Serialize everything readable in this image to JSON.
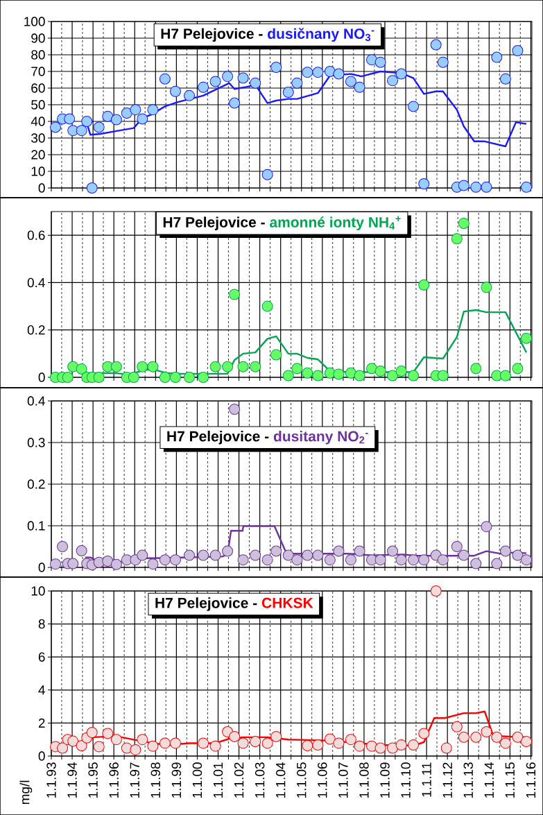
{
  "chart_data": [
    {
      "type": "scatter",
      "title": "H7 Pelejovice -",
      "subtitle": "dusičnany NO$_{3}$$^{-}$",
      "xlim": [
        "1993-01-01",
        "2016-01-20"
      ],
      "ylim": [
        0,
        100
      ],
      "yticks": [
        0,
        10,
        20,
        30,
        40,
        50,
        60,
        70,
        80,
        90,
        100
      ],
      "grid": true,
      "tick_labels": "y",
      "marker": "circle",
      "series": [
        {
          "color": "#99ccff",
          "x": [
            "1993-03-15",
            "1993-07-15",
            "1993-11-15",
            "1994-01-15",
            "1994-06-15",
            "1994-09-15",
            "1994-12-15",
            "1995-04-15",
            "1995-09-15",
            "1996-02-15",
            "1996-08-15",
            "1997-01-15",
            "1997-05-15",
            "1997-11-15",
            "1998-06-15",
            "1998-12-15",
            "1999-08-15",
            "2000-04-15",
            "2000-11-15",
            "2001-06-15",
            "2001-10-15",
            "2002-03-15",
            "2002-10-15",
            "2003-05-15",
            "2003-10-15",
            "2004-05-15",
            "2004-10-15",
            "2005-04-15",
            "2005-10-15",
            "2006-05-15",
            "2006-10-15",
            "2007-05-15",
            "2007-10-15",
            "2008-05-15",
            "2008-10-15",
            "2009-05-15",
            "2009-10-15",
            "2010-05-15",
            "2010-11-15",
            "2011-06-15",
            "2011-10-15",
            "2012-06-15",
            "2012-10-15",
            "2013-05-15",
            "2013-11-15",
            "2014-05-15",
            "2014-10-15",
            "2015-05-15",
            "2015-10-15"
          ],
          "values": [
            36.5,
            41.5,
            41.5,
            34.5,
            34.5,
            40,
            0,
            36.5,
            43,
            41,
            45,
            47,
            41.5,
            47,
            65.5,
            58,
            55.5,
            60.5,
            64,
            67,
            51,
            66,
            63,
            8,
            72.5,
            57.5,
            63,
            69.5,
            69.5,
            70,
            68.5,
            64,
            60.5,
            77,
            75.5,
            64.5,
            68.5,
            49,
            2.5,
            86,
            75.5,
            0.5,
            1.5,
            0.5,
            0.5,
            78.5,
            65.5,
            82.5,
            0.5
          ]
        },
        {
          "type": "line",
          "marker": "none",
          "line_style": "solid",
          "color": "#1a1aff",
          "x": [
            "1994-09-15",
            "1994-11-15",
            "1995-05-15",
            "1996-01-15",
            "1996-12-15",
            "1997-05-15",
            "1997-10-15",
            "1998-06-15",
            "1999-01-15",
            "2000-04-15",
            "2000-11-15",
            "2001-07-15",
            "2001-10-15",
            "2002-04-15",
            "2002-10-15",
            "2003-05-15",
            "2003-10-15",
            "2004-05-15",
            "2004-10-15",
            "2005-10-15",
            "2006-05-15",
            "2007-05-15",
            "2007-11-15",
            "2008-10-15",
            "2009-10-15",
            "2010-05-15",
            "2010-11-15",
            "2011-06-15",
            "2011-10-15",
            "2012-06-15",
            "2012-10-15",
            "2013-04-15",
            "2013-10-15",
            "2014-10-15",
            "2015-04-15",
            "2015-10-15"
          ],
          "values": [
            39,
            32,
            32.5,
            34,
            36,
            42,
            44,
            49,
            51.5,
            55.5,
            59,
            63,
            59.5,
            60.5,
            62,
            51,
            52.5,
            53.5,
            53.5,
            57,
            67.5,
            68.5,
            67,
            70,
            69,
            66,
            56.5,
            58,
            58,
            47,
            37,
            28,
            28,
            25,
            39.5,
            38.5
          ]
        }
      ]
    },
    {
      "type": "scatter",
      "title": "H7 Pelejovice -",
      "subtitle": "amonné ionty NH$_{4}$$^{+}$",
      "xlim": [
        "1993-01-01",
        "2016-01-20"
      ],
      "ylim": [
        0,
        0.7
      ],
      "yticks": [
        0,
        0.2,
        0.4,
        0.6
      ],
      "grid": true,
      "tick_labels": "y",
      "marker": "circle",
      "series": [
        {
          "color": "#66ff66",
          "x": [
            "1993-03-15",
            "1993-07-15",
            "1993-10-15",
            "1994-01-15",
            "1994-06-15",
            "1994-09-15",
            "1994-12-15",
            "1995-04-15",
            "1995-09-15",
            "1996-02-15",
            "1996-08-15",
            "1996-12-15",
            "1997-05-15",
            "1997-11-15",
            "1998-06-15",
            "1998-12-15",
            "1999-08-15",
            "2000-04-15",
            "2000-11-15",
            "2001-06-15",
            "2001-10-15",
            "2002-03-15",
            "2002-10-15",
            "2003-05-15",
            "2003-10-15",
            "2004-05-15",
            "2004-10-15",
            "2005-04-15",
            "2005-10-15",
            "2006-05-15",
            "2006-10-15",
            "2007-05-15",
            "2007-10-15",
            "2008-05-15",
            "2008-10-15",
            "2009-05-15",
            "2009-10-15",
            "2010-05-15",
            "2010-11-15",
            "2011-06-15",
            "2011-10-15",
            "2012-06-15",
            "2012-10-15",
            "2013-05-15",
            "2013-11-15",
            "2014-05-15",
            "2014-10-15",
            "2015-05-15",
            "2015-10-15"
          ],
          "values": [
            0,
            0,
            0,
            0.045,
            0.035,
            0,
            0,
            0,
            0.045,
            0.045,
            0,
            0,
            0.045,
            0.045,
            0,
            0,
            0,
            0,
            0.045,
            0.045,
            0.35,
            0.045,
            0.045,
            0.3,
            0.095,
            0.007,
            0.037,
            0.018,
            0.007,
            0.018,
            0.013,
            0.018,
            0.007,
            0.037,
            0.026,
            0.007,
            0.026,
            0.007,
            0.39,
            0.007,
            0.007,
            0.585,
            0.65,
            0.037,
            0.38,
            0.007,
            0.007,
            0.037,
            0.165
          ]
        },
        {
          "type": "line",
          "marker": "none",
          "line_style": "solid",
          "color": "#00a651",
          "x": [
            "1994-09-15",
            "1996-01-15",
            "1996-09-15",
            "1997-07-15",
            "1997-12-15",
            "1998-07-15",
            "1999-03-15",
            "2001-06-15",
            "2001-10-15",
            "2002-03-15",
            "2002-10-15",
            "2003-05-15",
            "2003-10-15",
            "2004-05-15",
            "2004-10-15",
            "2005-04-15",
            "2005-10-15",
            "2006-05-15",
            "2007-05-15",
            "2010-05-15",
            "2010-11-15",
            "2011-10-15",
            "2012-06-15",
            "2012-10-15",
            "2013-05-15",
            "2013-11-15",
            "2014-10-15",
            "2015-10-15"
          ],
          "values": [
            0.018,
            0.018,
            0.012,
            0.032,
            0.032,
            0.018,
            0.015,
            0.015,
            0.073,
            0.1,
            0.105,
            0.163,
            0.173,
            0.1,
            0.1,
            0.082,
            0.076,
            0.026,
            0.022,
            0.022,
            0.085,
            0.079,
            0.17,
            0.278,
            0.284,
            0.275,
            0.275,
            0.105
          ]
        }
      ]
    },
    {
      "type": "scatter",
      "title": "H7 Pelejovice -",
      "subtitle": "dusitany NO$_{2}$$^{-}$",
      "xlim": [
        "1993-01-01",
        "2016-01-20"
      ],
      "ylim": [
        0,
        0.4
      ],
      "yticks": [
        0,
        0.1,
        0.2,
        0.3,
        0.4
      ],
      "grid": true,
      "tick_labels": "y",
      "marker": "circle",
      "series": [
        {
          "color": "#ccc0da",
          "x": [
            "1993-03-15",
            "1993-07-15",
            "1993-10-15",
            "1994-01-15",
            "1994-06-15",
            "1994-09-15",
            "1994-12-15",
            "1995-04-15",
            "1995-09-15",
            "1996-02-15",
            "1996-08-15",
            "1997-01-15",
            "1997-05-15",
            "1997-11-15",
            "1998-06-15",
            "1998-12-15",
            "1999-08-15",
            "2000-04-15",
            "2000-11-15",
            "2001-06-15",
            "2001-10-15",
            "2002-03-15",
            "2002-10-15",
            "2003-05-15",
            "2003-10-15",
            "2004-05-15",
            "2004-10-15",
            "2005-04-15",
            "2005-10-15",
            "2006-05-15",
            "2006-10-15",
            "2007-05-15",
            "2007-10-15",
            "2008-05-15",
            "2008-10-15",
            "2009-05-15",
            "2009-10-15",
            "2010-05-15",
            "2010-11-15",
            "2011-06-15",
            "2011-10-15",
            "2012-06-15",
            "2012-10-15",
            "2013-05-15",
            "2013-11-15",
            "2014-05-15",
            "2014-10-15",
            "2015-05-15",
            "2015-10-15"
          ],
          "values": [
            0.008,
            0.05,
            0.009,
            0.009,
            0.04,
            0.009,
            0.006,
            0.012,
            0.015,
            0.007,
            0.018,
            0.018,
            0.029,
            0.008,
            0.018,
            0.018,
            0.029,
            0.029,
            0.029,
            0.039,
            0.38,
            0.018,
            0.029,
            0.018,
            0.039,
            0.029,
            0.018,
            0.029,
            0.029,
            0.018,
            0.039,
            0.018,
            0.039,
            0.018,
            0.018,
            0.039,
            0.018,
            0.018,
            0.018,
            0.029,
            0.018,
            0.05,
            0.029,
            0.009,
            0.098,
            0.009,
            0.039,
            0.029,
            0.018
          ]
        },
        {
          "type": "line",
          "marker": "none",
          "line_style": "solid",
          "color": "#7030a0",
          "x": [
            "1994-08-15",
            "1994-11-15",
            "1995-03-15",
            "1996-01-15",
            "1996-07-15",
            "1997-03-15",
            "1997-11-15",
            "2001-03-15",
            "2001-06-15",
            "2001-08-15",
            "2002-03-05",
            "2002-03-20",
            "2003-09-15",
            "2004-04-15",
            "2007-03-15",
            "2008-05-15",
            "2009-11-15",
            "2010-07-15",
            "2013-04-15",
            "2013-11-15",
            "2014-07-15",
            "2015-04-15",
            "2015-10-15"
          ],
          "values": [
            0.024,
            0.024,
            0.016,
            0.016,
            0.012,
            0.022,
            0.022,
            0.026,
            0.031,
            0.088,
            0.088,
            0.099,
            0.099,
            0.033,
            0.033,
            0.029,
            0.031,
            0.028,
            0.028,
            0.039,
            0.033,
            0.036,
            0.034
          ]
        }
      ]
    },
    {
      "type": "scatter",
      "title": "H7 Pelejovice -",
      "subtitle": "CHKSK",
      "ylabel": "mg/l",
      "xlim": [
        "1993-01-01",
        "2016-01-20"
      ],
      "ylim": [
        0,
        10
      ],
      "yticks": [
        0,
        2,
        4,
        6,
        8,
        10
      ],
      "grid": true,
      "marker": "circle",
      "xticks": [
        {
          "value": "1993-01-01",
          "label": "1.1.93"
        },
        {
          "value": "1993-07-01",
          "label": null
        },
        {
          "value": "1994-01-01",
          "label": "1.1.94"
        },
        {
          "value": "1994-07-01",
          "label": null
        },
        {
          "value": "1995-01-01",
          "label": "1.1.95"
        },
        {
          "value": "1995-07-01",
          "label": null
        },
        {
          "value": "1996-01-01",
          "label": "1.1.96"
        },
        {
          "value": "1996-07-01",
          "label": null
        },
        {
          "value": "1997-01-01",
          "label": "1.1.97"
        },
        {
          "value": "1997-07-01",
          "label": null
        },
        {
          "value": "1998-01-01",
          "label": "1.1.98"
        },
        {
          "value": "1998-07-01",
          "label": null
        },
        {
          "value": "1999-01-01",
          "label": "1.1.99"
        },
        {
          "value": "1999-07-01",
          "label": null
        },
        {
          "value": "2000-01-01",
          "label": "1.1.00"
        },
        {
          "value": "2000-07-01",
          "label": null
        },
        {
          "value": "2001-01-01",
          "label": "1.1.01"
        },
        {
          "value": "2001-07-01",
          "label": null
        },
        {
          "value": "2002-01-01",
          "label": "1.1.02"
        },
        {
          "value": "2002-07-01",
          "label": null
        },
        {
          "value": "2003-01-01",
          "label": "1.1.03"
        },
        {
          "value": "2003-07-01",
          "label": null
        },
        {
          "value": "2004-01-01",
          "label": "1.1.04"
        },
        {
          "value": "2004-07-01",
          "label": null
        },
        {
          "value": "2005-01-01",
          "label": "1.1.05"
        },
        {
          "value": "2005-07-01",
          "label": null
        },
        {
          "value": "2006-01-01",
          "label": "1.1.06"
        },
        {
          "value": "2006-07-01",
          "label": null
        },
        {
          "value": "2007-01-01",
          "label": "1.1.07"
        },
        {
          "value": "2007-07-01",
          "label": null
        },
        {
          "value": "2008-01-01",
          "label": "1.1.08"
        },
        {
          "value": "2008-07-01",
          "label": null
        },
        {
          "value": "2009-01-01",
          "label": "1.1.09"
        },
        {
          "value": "2009-07-01",
          "label": null
        },
        {
          "value": "2010-01-01",
          "label": "1.1.10"
        },
        {
          "value": "2010-07-01",
          "label": null
        },
        {
          "value": "2011-01-01",
          "label": "1.1.11"
        },
        {
          "value": "2011-07-01",
          "label": null
        },
        {
          "value": "2012-01-01",
          "label": "1.1.12"
        },
        {
          "value": "2012-07-01",
          "label": null
        },
        {
          "value": "2013-01-01",
          "label": "1.1.13"
        },
        {
          "value": "2013-07-01",
          "label": null
        },
        {
          "value": "2014-01-01",
          "label": "1.1.14"
        },
        {
          "value": "2014-07-01",
          "label": null
        },
        {
          "value": "2015-01-01",
          "label": "1.1.15"
        },
        {
          "value": "2015-07-01",
          "label": null
        },
        {
          "value": "2016-01-01",
          "label": "1.1.16"
        }
      ],
      "series": [
        {
          "color": "#f2dcdb",
          "x": [
            "1993-03-15",
            "1993-07-15",
            "1993-10-15",
            "1994-01-15",
            "1994-06-15",
            "1994-09-15",
            "1994-12-15",
            "1995-04-15",
            "1995-09-15",
            "1996-02-15",
            "1996-08-15",
            "1997-01-15",
            "1997-05-15",
            "1997-11-15",
            "1998-06-15",
            "1998-12-15",
            "2000-04-15",
            "2000-11-15",
            "2001-06-15",
            "2001-10-15",
            "2002-03-15",
            "2002-10-15",
            "2003-05-15",
            "2003-10-15",
            "2005-04-15",
            "2005-10-15",
            "2006-05-15",
            "2006-10-15",
            "2007-05-15",
            "2007-10-15",
            "2008-05-15",
            "2008-10-15",
            "2009-05-15",
            "2009-10-15",
            "2010-05-15",
            "2010-11-15",
            "2011-06-15",
            "2011-12-15",
            "2012-06-15",
            "2012-10-15",
            "2013-05-15",
            "2013-11-15",
            "2014-05-15",
            "2014-10-15",
            "2015-05-15",
            "2015-10-15"
          ],
          "values": [
            0.57,
            0.48,
            1.0,
            0.9,
            0.63,
            1.1,
            1.43,
            0.57,
            1.37,
            1.0,
            0.48,
            0.38,
            1.0,
            0.6,
            0.78,
            0.78,
            0.78,
            0.6,
            1.47,
            1.18,
            0.78,
            0.88,
            0.78,
            1.18,
            0.63,
            0.67,
            1.03,
            0.78,
            1.0,
            0.6,
            0.6,
            0.48,
            0.48,
            0.67,
            0.67,
            1.37,
            10,
            0.48,
            1.77,
            1.14,
            1.14,
            1.47,
            1.14,
            0.78,
            1.14,
            0.88
          ]
        },
        {
          "type": "line",
          "marker": "none",
          "line_style": "solid",
          "color": "#ff0000",
          "x": [
            "1994-08-15",
            "1995-01-15",
            "1995-09-15",
            "1996-05-15",
            "1997-01-15",
            "1997-11-15",
            "1998-07-15",
            "1999-08-15",
            "2000-11-15",
            "2001-07-15",
            "2002-03-15",
            "2003-05-15",
            "2004-05-15",
            "2005-04-15",
            "2006-05-15",
            "2007-10-15",
            "2008-10-15",
            "2010-05-15",
            "2010-11-15",
            "2011-05-15",
            "2011-11-15",
            "2012-10-15",
            "2013-05-15",
            "2013-10-15",
            "2014-03-15",
            "2015-10-15"
          ],
          "values": [
            0.84,
            1.14,
            1.18,
            1.14,
            0.97,
            0.78,
            0.67,
            0.78,
            0.78,
            1.05,
            1.14,
            1.14,
            1.0,
            0.97,
            0.93,
            0.78,
            0.67,
            0.63,
            0.84,
            2.3,
            2.3,
            2.6,
            2.6,
            2.7,
            1.22,
            1.14
          ]
        }
      ]
    }
  ]
}
